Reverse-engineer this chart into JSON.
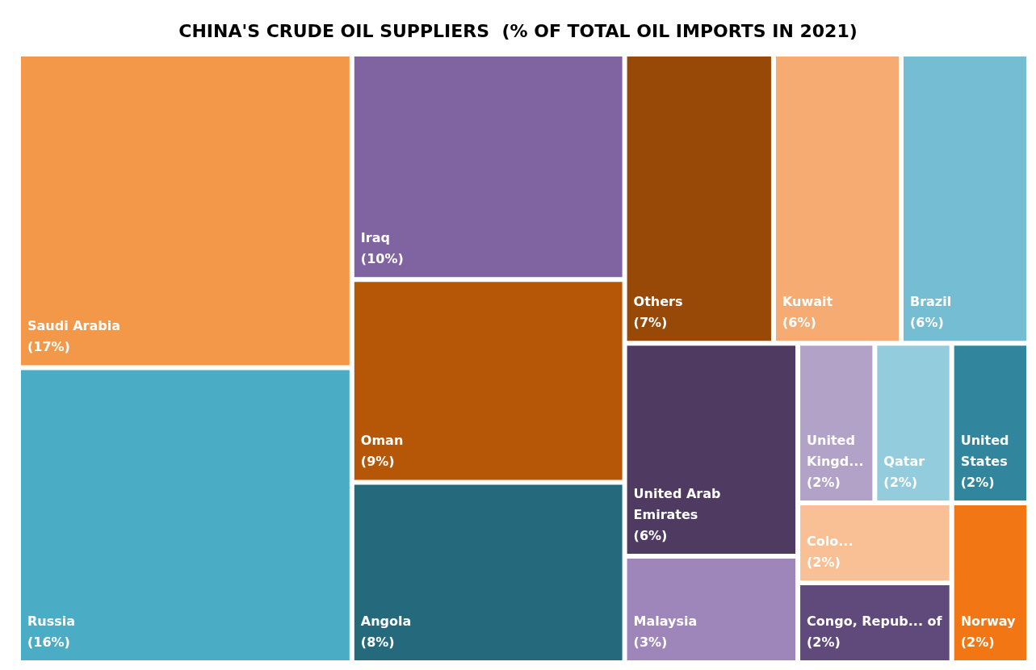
{
  "chart_data": {
    "type": "other",
    "title": "CHINA'S CRUDE OIL SUPPLIERS  (% OF TOTAL OIL IMPORTS IN 2021)",
    "categories": [
      "Saudi Arabia",
      "Russia",
      "Iraq",
      "Oman",
      "Angola",
      "Others",
      "United Arab Emirates",
      "Brazil",
      "Kuwait",
      "Malaysia",
      "Norway",
      "Congo, Repub... of",
      "Colo...",
      "United States",
      "Qatar",
      "United Kingd..."
    ],
    "values": [
      17,
      16,
      10,
      9,
      8,
      7,
      6,
      6,
      6,
      3,
      2,
      2,
      2,
      2,
      2,
      2
    ],
    "value_labels": [
      "(17%)",
      "(16%)",
      "(10%)",
      "(9%)",
      "(8%)",
      "(7%)",
      "(6%)",
      "(6%)",
      "(6%)",
      "(3%)",
      "(2%)",
      "(2%)",
      "(2%)",
      "(2%)",
      "(2%)",
      "(2%)"
    ],
    "colors": [
      "#f39848",
      "#4bacc6",
      "#8064a2",
      "#b65708",
      "#256a7c",
      "#984807",
      "#4f3b62",
      "#74bdd2",
      "#f5ab72",
      "#9e86bb",
      "#f27613",
      "#604a7b",
      "#f9c095",
      "#31859c",
      "#93cddd",
      "#b3a2c7"
    ],
    "data_labels": true
  }
}
